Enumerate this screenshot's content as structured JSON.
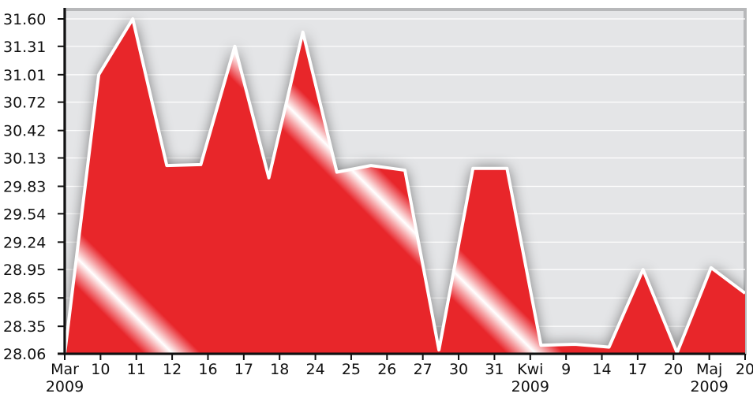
{
  "colors": {
    "plot_background": "#e4e5e7",
    "gridline": "#ffffff",
    "area_fill": "#e8252b",
    "area_highlight": "#ffffff",
    "series_line": "#ffffff",
    "axis": "#111111",
    "frame": "#b7b8ba"
  },
  "chart_data": {
    "type": "area",
    "title": "",
    "xlabel": "",
    "ylabel": "",
    "grid": true,
    "legend": "none",
    "ylim": [
      28.06,
      31.7
    ],
    "y_ticks": [
      "28.06",
      "28.35",
      "28.65",
      "28.95",
      "29.24",
      "29.54",
      "29.83",
      "30.13",
      "30.42",
      "30.72",
      "31.01",
      "31.31",
      "31.60"
    ],
    "x_ticks": [
      {
        "label": "Mar",
        "sub": "2009"
      },
      {
        "label": "10",
        "sub": ""
      },
      {
        "label": "11",
        "sub": ""
      },
      {
        "label": "12",
        "sub": ""
      },
      {
        "label": "16",
        "sub": ""
      },
      {
        "label": "17",
        "sub": ""
      },
      {
        "label": "18",
        "sub": ""
      },
      {
        "label": "24",
        "sub": ""
      },
      {
        "label": "25",
        "sub": ""
      },
      {
        "label": "26",
        "sub": ""
      },
      {
        "label": "27",
        "sub": ""
      },
      {
        "label": "30",
        "sub": ""
      },
      {
        "label": "31",
        "sub": ""
      },
      {
        "label": "Kwi",
        "sub": "2009"
      },
      {
        "label": "9",
        "sub": ""
      },
      {
        "label": "14",
        "sub": ""
      },
      {
        "label": "17",
        "sub": ""
      },
      {
        "label": "20",
        "sub": ""
      },
      {
        "label": "Maj",
        "sub": "2009"
      },
      {
        "label": "20",
        "sub": ""
      }
    ],
    "series": [
      {
        "values": [
          28.06,
          31.01,
          31.6,
          30.05,
          30.06,
          31.31,
          29.92,
          31.46,
          29.98,
          30.05,
          30.0,
          28.1,
          30.02,
          30.02,
          28.15,
          28.16,
          28.13,
          28.95,
          28.07,
          28.97,
          28.7
        ]
      }
    ]
  }
}
